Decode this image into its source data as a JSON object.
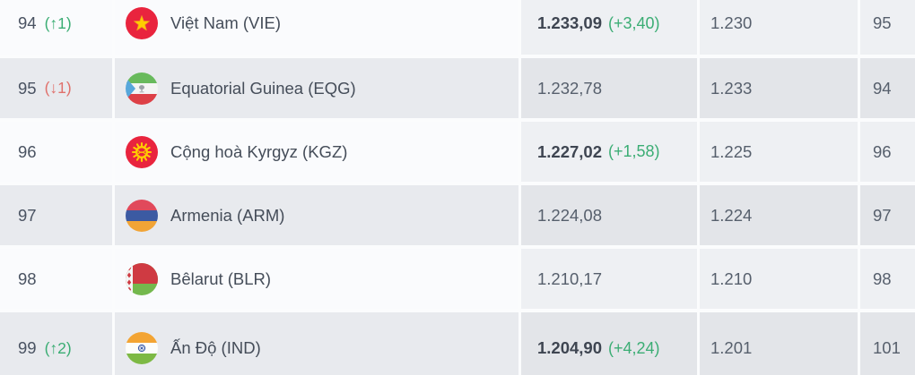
{
  "table": {
    "rows": [
      {
        "rank": "94",
        "movement": "(↑1)",
        "movement_dir": "up",
        "flag": "vietnam",
        "country": "Việt Nam (VIE)",
        "points": "1.233,09",
        "points_delta": "(+3,40)",
        "prev_points": "1.230",
        "prev_rank": "95"
      },
      {
        "rank": "95",
        "movement": "(↓1)",
        "movement_dir": "down",
        "flag": "equatorial-guinea",
        "country": "Equatorial Guinea (EQG)",
        "points": "1.232,78",
        "points_delta": "",
        "prev_points": "1.233",
        "prev_rank": "94"
      },
      {
        "rank": "96",
        "movement": "",
        "movement_dir": "none",
        "flag": "kyrgyzstan",
        "country": "Cộng hoà Kyrgyz (KGZ)",
        "points": "1.227,02",
        "points_delta": "(+1,58)",
        "prev_points": "1.225",
        "prev_rank": "96"
      },
      {
        "rank": "97",
        "movement": "",
        "movement_dir": "none",
        "flag": "armenia",
        "country": "Armenia (ARM)",
        "points": "1.224,08",
        "points_delta": "",
        "prev_points": "1.224",
        "prev_rank": "97"
      },
      {
        "rank": "98",
        "movement": "",
        "movement_dir": "none",
        "flag": "belarus",
        "country": "Bêlarut (BLR)",
        "points": "1.210,17",
        "points_delta": "",
        "prev_points": "1.210",
        "prev_rank": "98"
      },
      {
        "rank": "99",
        "movement": "(↑2)",
        "movement_dir": "up",
        "flag": "india",
        "country": "Ấn Độ (IND)",
        "points": "1.204,90",
        "points_delta": "(+4,24)",
        "prev_points": "1.201",
        "prev_rank": "101"
      }
    ]
  },
  "colors": {
    "positive": "#3bad74",
    "negative": "#e0716c",
    "row_light": "#fafbfd",
    "row_dark": "#e8eaee",
    "shaded_light": "#eef0f3",
    "shaded_dark": "#e3e5e9"
  }
}
